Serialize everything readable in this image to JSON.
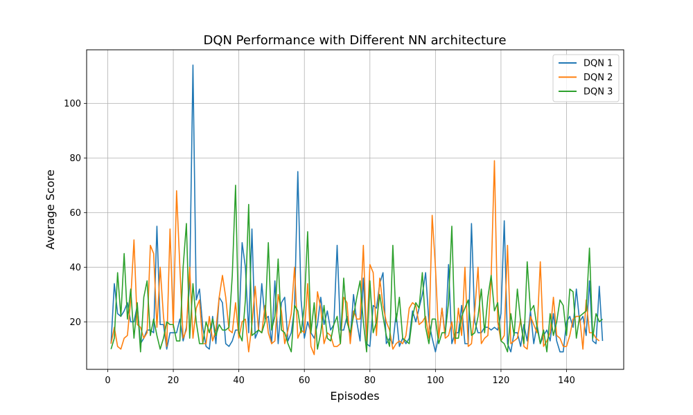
{
  "chart_data": {
    "type": "line",
    "title": "DQN Performance with Different NN architecture",
    "xlabel": "Episodes",
    "ylabel": "Average Score",
    "xlim": [
      -6.45,
      157.45
    ],
    "ylim": [
      2.6,
      119.6
    ],
    "xticks": [
      0,
      20,
      40,
      60,
      80,
      100,
      120,
      140
    ],
    "yticks": [
      20,
      40,
      60,
      80,
      100
    ],
    "grid": true,
    "legend": "top-right",
    "series": [
      {
        "name": "DQN 1",
        "color": "#1f77b4",
        "x_start": 1,
        "values": [
          12,
          34,
          23,
          22,
          24,
          27,
          20,
          20,
          26,
          12,
          14,
          17,
          17,
          16,
          55,
          19,
          19,
          10,
          16,
          16,
          16,
          21,
          13,
          18,
          34,
          114,
          28,
          32,
          18,
          11,
          10,
          22,
          12,
          29,
          27,
          12,
          11,
          13,
          17,
          17,
          49,
          40,
          16,
          54,
          14,
          17,
          34,
          21,
          22,
          12,
          35,
          12,
          27,
          29,
          13,
          16,
          25,
          75,
          28,
          14,
          20,
          16,
          14,
          19,
          29,
          19,
          24,
          17,
          19,
          48,
          17,
          17,
          22,
          14,
          30,
          20,
          13,
          36,
          12,
          11,
          26,
          25,
          34,
          38,
          12,
          14,
          12,
          23,
          11,
          14,
          12,
          14,
          24,
          20,
          25,
          30,
          38,
          20,
          14,
          9,
          15,
          25,
          15,
          41,
          12,
          16,
          16,
          26,
          12,
          12,
          56,
          20,
          16,
          16,
          18,
          18,
          17,
          18,
          17,
          23,
          57,
          12,
          9,
          16,
          16,
          11,
          19,
          13,
          24,
          12,
          19,
          12,
          15,
          17,
          13,
          23,
          13,
          9,
          9,
          20,
          22,
          18,
          32,
          20,
          22,
          15,
          35,
          13,
          12,
          33,
          13
        ],
        "note": ""
      },
      {
        "name": "DQN 2",
        "color": "#ff7f0e",
        "x_start": 1,
        "values": [
          12,
          18,
          11,
          10,
          14,
          15,
          28,
          50,
          19,
          18,
          14,
          16,
          48,
          45,
          18,
          40,
          22,
          11,
          54,
          18,
          68,
          40,
          14,
          17,
          40,
          14,
          25,
          28,
          12,
          12,
          22,
          13,
          17,
          29,
          37,
          29,
          17,
          16,
          27,
          14,
          20,
          21,
          9,
          19,
          33,
          17,
          16,
          26,
          16,
          12,
          13,
          30,
          24,
          12,
          17,
          23,
          40,
          14,
          17,
          16,
          34,
          11,
          8,
          31,
          25,
          12,
          16,
          15,
          11,
          11,
          12,
          29,
          27,
          12,
          24,
          21,
          21,
          48,
          13,
          41,
          38,
          15,
          36,
          26,
          20,
          17,
          10,
          12,
          13,
          12,
          15,
          25,
          27,
          26,
          19,
          20,
          22,
          14,
          59,
          40,
          14,
          25,
          14,
          15,
          20,
          12,
          25,
          15,
          40,
          11,
          12,
          24,
          40,
          12,
          14,
          15,
          36,
          79,
          20,
          13,
          15,
          48,
          12,
          13,
          14,
          21,
          11,
          10,
          22,
          19,
          16,
          42,
          11,
          13,
          16,
          29,
          15,
          14,
          11,
          11,
          15,
          21,
          22,
          22,
          10,
          28,
          16,
          16,
          14,
          13
        ],
        "note": ""
      },
      {
        "name": "DQN 3",
        "color": "#2ca02c",
        "x_start": 1,
        "values": [
          10,
          14,
          38,
          22,
          45,
          21,
          32,
          14,
          27,
          9,
          29,
          35,
          15,
          21,
          15,
          10,
          14,
          20,
          19,
          19,
          13,
          13,
          40,
          56,
          14,
          34,
          20,
          12,
          12,
          20,
          16,
          21,
          15,
          19,
          17,
          17,
          18,
          37,
          70,
          16,
          13,
          28,
          63,
          15,
          16,
          17,
          16,
          20,
          49,
          17,
          22,
          43,
          17,
          16,
          12,
          9,
          26,
          24,
          16,
          26,
          53,
          16,
          27,
          10,
          16,
          26,
          14,
          13,
          19,
          22,
          12,
          36,
          20,
          16,
          22,
          29,
          35,
          20,
          9,
          35,
          16,
          20,
          30,
          22,
          15,
          11,
          48,
          20,
          29,
          14,
          13,
          12,
          22,
          27,
          25,
          38,
          18,
          12,
          21,
          21,
          12,
          16,
          16,
          27,
          55,
          14,
          14,
          22,
          25,
          28,
          15,
          16,
          22,
          32,
          16,
          29,
          37,
          24,
          27,
          13,
          12,
          9,
          23,
          15,
          32,
          20,
          12,
          42,
          24,
          26,
          18,
          12,
          17,
          9,
          23,
          15,
          20,
          28,
          26,
          15,
          32,
          31,
          14,
          22,
          23,
          24,
          47,
          14,
          23,
          20,
          21
        ],
        "note": ""
      }
    ]
  }
}
